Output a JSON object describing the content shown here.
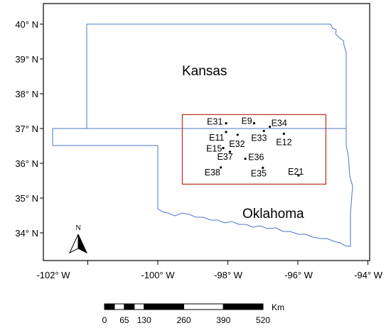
{
  "map": {
    "states": [
      {
        "name": "Kansas"
      },
      {
        "name": "Oklahoma"
      }
    ],
    "lat_labels": [
      "40° N",
      "39° N",
      "38° N",
      "37° N",
      "36° N",
      "35° N",
      "34° N"
    ],
    "lon_labels": [
      "-102° W",
      "-100° W",
      "-98° W",
      "-96° W",
      "-94° W"
    ],
    "study_area": {
      "lon_min": -99.3,
      "lon_max": -95.2,
      "lat_min": 35.4,
      "lat_max": 37.4,
      "color": "#c0392b"
    },
    "border_color": "#4a78c8",
    "stations": [
      {
        "id": "E31",
        "lon": -98.05,
        "lat": 37.15
      },
      {
        "id": "E9",
        "lon": -97.25,
        "lat": 37.15
      },
      {
        "id": "E34",
        "lon": -96.8,
        "lat": 37.05
      },
      {
        "id": "E11",
        "lon": -98.05,
        "lat": 36.9
      },
      {
        "id": "E33",
        "lon": -96.97,
        "lat": 36.93
      },
      {
        "id": "E12",
        "lon": -96.4,
        "lat": 36.85
      },
      {
        "id": "E32",
        "lon": -97.72,
        "lat": 36.82
      },
      {
        "id": "E15",
        "lon": -98.13,
        "lat": 36.44
      },
      {
        "id": "E37",
        "lon": -97.94,
        "lat": 36.33
      },
      {
        "id": "E36",
        "lon": -97.5,
        "lat": 36.13
      },
      {
        "id": "E38",
        "lon": -98.2,
        "lat": 35.88
      },
      {
        "id": "E35",
        "lon": -97.0,
        "lat": 35.87
      },
      {
        "id": "E21",
        "lon": -95.98,
        "lat": 35.65
      }
    ],
    "north_arrow_label": "N",
    "scale_bar": {
      "unit": "Km",
      "labels": [
        "0",
        "65",
        "130",
        "260",
        "390",
        "520"
      ],
      "values": [
        0,
        65,
        130,
        260,
        390,
        520
      ]
    }
  }
}
